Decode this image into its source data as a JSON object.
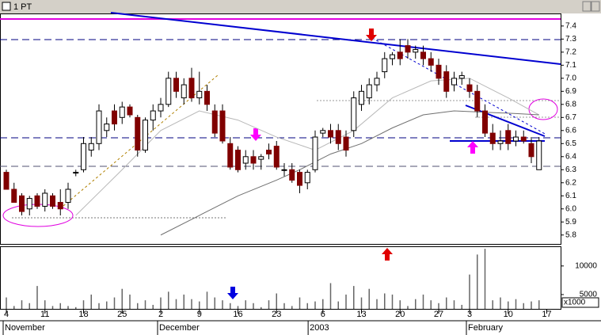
{
  "window_title": "1 PT",
  "chart_data": {
    "type": "candlestick",
    "open": [
      6.28,
      6.15,
      6.1,
      6.0,
      6.1,
      6.02,
      6.1,
      6.05,
      6.05,
      6.28,
      6.3,
      6.45,
      6.5,
      6.6,
      6.75,
      6.7,
      6.78,
      6.7,
      6.45,
      6.68,
      6.75,
      6.8,
      7.0,
      6.85,
      7.0,
      6.85,
      6.9,
      6.75,
      6.75,
      6.5,
      6.45,
      6.35,
      6.4,
      6.38,
      6.45,
      6.48,
      6.3,
      6.3,
      6.28,
      6.2,
      6.3,
      6.58,
      6.6,
      6.6,
      6.55,
      6.6,
      6.8,
      6.85,
      6.95,
      7.05,
      7.15,
      7.2,
      7.25,
      7.2,
      7.2,
      7.15,
      7.1,
      7.05,
      6.95,
      7.0,
      6.95,
      6.9,
      6.75,
      6.58,
      6.5,
      6.6,
      6.52,
      6.55,
      6.5,
      6.3
    ],
    "high": [
      6.3,
      6.2,
      6.12,
      6.1,
      6.12,
      6.15,
      6.12,
      6.15,
      6.2,
      6.3,
      6.55,
      6.55,
      6.8,
      6.7,
      6.8,
      6.82,
      6.8,
      6.72,
      6.7,
      6.8,
      6.85,
      7.05,
      7.05,
      7.0,
      7.08,
      7.05,
      6.95,
      6.8,
      6.8,
      6.55,
      6.48,
      6.45,
      6.45,
      6.42,
      6.5,
      6.52,
      6.35,
      6.35,
      6.3,
      6.3,
      6.6,
      6.62,
      6.65,
      6.65,
      6.6,
      6.9,
      6.95,
      7.0,
      7.05,
      7.2,
      7.2,
      7.3,
      7.3,
      7.25,
      7.25,
      7.2,
      7.15,
      7.1,
      7.05,
      7.05,
      7.0,
      6.95,
      6.8,
      6.65,
      6.6,
      6.65,
      6.6,
      6.6,
      6.55,
      6.55
    ],
    "low": [
      6.15,
      6.05,
      5.95,
      5.95,
      6.0,
      5.98,
      6.0,
      5.95,
      6.0,
      6.25,
      6.28,
      6.4,
      6.45,
      6.55,
      6.6,
      6.65,
      6.7,
      6.4,
      6.43,
      6.6,
      6.7,
      6.78,
      6.85,
      6.8,
      6.82,
      6.8,
      6.75,
      6.55,
      6.5,
      6.3,
      6.28,
      6.3,
      6.3,
      6.3,
      6.38,
      6.3,
      6.25,
      6.2,
      6.12,
      6.15,
      6.28,
      6.55,
      6.5,
      6.45,
      6.4,
      6.55,
      6.75,
      6.8,
      6.9,
      7.0,
      7.1,
      7.1,
      7.15,
      7.15,
      7.1,
      7.05,
      6.95,
      6.85,
      6.9,
      6.95,
      6.85,
      6.7,
      6.55,
      6.45,
      6.45,
      6.45,
      6.48,
      6.5,
      6.35,
      6.3
    ],
    "close": [
      6.15,
      6.05,
      5.98,
      6.08,
      6.02,
      6.12,
      6.02,
      6.0,
      6.15,
      6.28,
      6.5,
      6.5,
      6.75,
      6.65,
      6.65,
      6.78,
      6.72,
      6.45,
      6.68,
      6.75,
      6.8,
      7.0,
      6.9,
      6.95,
      6.85,
      6.9,
      6.8,
      6.58,
      6.52,
      6.32,
      6.3,
      6.4,
      6.35,
      6.4,
      6.42,
      6.32,
      6.3,
      6.22,
      6.18,
      6.28,
      6.55,
      6.6,
      6.55,
      6.5,
      6.45,
      6.85,
      6.9,
      6.95,
      7.0,
      7.15,
      7.18,
      7.15,
      7.2,
      7.22,
      7.15,
      7.1,
      7.0,
      6.9,
      7.0,
      7.02,
      6.9,
      6.75,
      6.58,
      6.5,
      6.52,
      6.5,
      6.55,
      6.52,
      6.4,
      6.52
    ],
    "volume": [
      4500,
      3000,
      4000,
      3500,
      6500,
      4000,
      3000,
      3500,
      3000,
      2800,
      4000,
      5000,
      3500,
      3800,
      4500,
      6000,
      5000,
      3500,
      4000,
      3200,
      4500,
      5500,
      4200,
      5000,
      4200,
      3800,
      5500,
      4500,
      4000,
      3500,
      3000,
      4000,
      3500,
      2800,
      4000,
      5200,
      3500,
      3000,
      4500,
      3500,
      3800,
      4200,
      7000,
      3800,
      5000,
      6500,
      4500,
      6000,
      4200,
      5200,
      5000,
      4000,
      3000,
      4200,
      5000,
      4000,
      3500,
      4500,
      4000,
      3200,
      8500,
      12000,
      13000,
      4000,
      4500,
      3800,
      4200,
      3500,
      3800,
      4000
    ],
    "averages": [
      {
        "x": [
          9,
          15,
          20,
          25,
          30,
          35,
          40,
          45,
          50,
          55,
          60,
          65,
          69
        ],
        "values": [
          5.95,
          6.3,
          6.6,
          6.75,
          6.68,
          6.55,
          6.45,
          6.6,
          6.85,
          6.98,
          7.0,
          6.85,
          6.72
        ],
        "color": "#b8b8b8"
      },
      {
        "x": [
          20,
          25,
          30,
          35,
          38,
          42,
          46,
          50,
          54,
          58,
          62,
          66,
          69
        ],
        "values": [
          5.8,
          5.95,
          6.1,
          6.22,
          6.3,
          6.42,
          6.5,
          6.62,
          6.72,
          6.75,
          6.74,
          6.73,
          6.72
        ],
        "color": "#707070"
      }
    ],
    "ylim": [
      5.75,
      7.49
    ],
    "yticks": [
      5.8,
      5.9,
      {
        "value": 6,
        "label": "6.0"
      },
      6.1,
      6.2,
      6.3,
      6.4,
      6.5,
      6.6,
      6.7,
      6.8,
      6.9,
      {
        "value": 7,
        "label": "7.0"
      },
      7.1,
      7.2,
      7.3,
      7.4
    ],
    "volume_ylim": [
      2500,
      13300
    ],
    "volume_yticks": [
      5000,
      10000
    ],
    "volume_unit": "x1000",
    "xticks": [
      {
        "value": 0,
        "label": "4"
      },
      {
        "value": 5,
        "label": "11"
      },
      {
        "value": 10,
        "label": "18"
      },
      {
        "value": 15,
        "label": "25"
      },
      {
        "value": 20,
        "label": "2"
      },
      {
        "value": 25,
        "label": "9"
      },
      {
        "value": 30,
        "label": "16"
      },
      {
        "value": 35,
        "label": "23"
      },
      {
        "value": 41,
        "label": "6"
      },
      {
        "value": 46,
        "label": "13"
      },
      {
        "value": 51,
        "label": "20"
      },
      {
        "value": 56,
        "label": "27"
      },
      {
        "value": 60,
        "label": "3"
      },
      {
        "value": 65,
        "label": "10"
      },
      {
        "value": 70,
        "label": "17"
      }
    ],
    "month_labels": [
      {
        "value": 0,
        "label": "November"
      },
      {
        "value": 20,
        "label": "December"
      },
      {
        "value": 39.5,
        "label": "2003"
      },
      {
        "value": 60,
        "label": "February"
      }
    ],
    "up_color": "#ffffff",
    "down_color": "#800000"
  }
}
